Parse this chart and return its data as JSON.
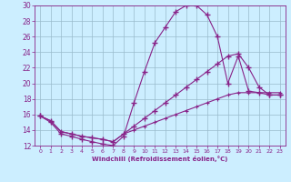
{
  "xlabel": "Windchill (Refroidissement éolien,°C)",
  "bg_color": "#cceeff",
  "line_color": "#882288",
  "grid_color": "#99bbcc",
  "xmin": -0.5,
  "xmax": 23.5,
  "ymin": 12,
  "ymax": 30,
  "yticks": [
    12,
    14,
    16,
    18,
    20,
    22,
    24,
    26,
    28,
    30
  ],
  "xticks": [
    0,
    1,
    2,
    3,
    4,
    5,
    6,
    7,
    8,
    9,
    10,
    11,
    12,
    13,
    14,
    15,
    16,
    17,
    18,
    19,
    20,
    21,
    22,
    23
  ],
  "line1_x": [
    0,
    1,
    2,
    3,
    4,
    5,
    6,
    7,
    8,
    9,
    10,
    11,
    12,
    13,
    14,
    15,
    16,
    17,
    18,
    19,
    20,
    21,
    22,
    23
  ],
  "line1_y": [
    15.8,
    15.0,
    13.5,
    13.2,
    12.8,
    12.5,
    12.2,
    12.0,
    13.2,
    17.5,
    21.5,
    25.2,
    27.2,
    29.2,
    30.0,
    30.0,
    28.8,
    26.0,
    20.0,
    23.5,
    19.0,
    18.8,
    18.5,
    18.5
  ],
  "line2_x": [
    0,
    1,
    2,
    3,
    4,
    5,
    6,
    7,
    8,
    9,
    10,
    11,
    12,
    13,
    14,
    15,
    16,
    17,
    18,
    19,
    20,
    21,
    22,
    23
  ],
  "line2_y": [
    15.8,
    15.2,
    13.8,
    13.5,
    13.2,
    13.0,
    12.8,
    12.5,
    13.5,
    14.5,
    15.5,
    16.5,
    17.5,
    18.5,
    19.5,
    20.5,
    21.5,
    22.5,
    23.5,
    23.8,
    22.0,
    19.5,
    18.5,
    18.5
  ],
  "line3_x": [
    0,
    1,
    2,
    3,
    4,
    5,
    6,
    7,
    8,
    9,
    10,
    11,
    12,
    13,
    14,
    15,
    16,
    17,
    18,
    19,
    20,
    21,
    22,
    23
  ],
  "line3_y": [
    15.8,
    15.2,
    13.8,
    13.5,
    13.2,
    13.0,
    12.8,
    12.5,
    13.5,
    14.0,
    14.5,
    15.0,
    15.5,
    16.0,
    16.5,
    17.0,
    17.5,
    18.0,
    18.5,
    18.8,
    18.8,
    18.8,
    18.8,
    18.8
  ]
}
